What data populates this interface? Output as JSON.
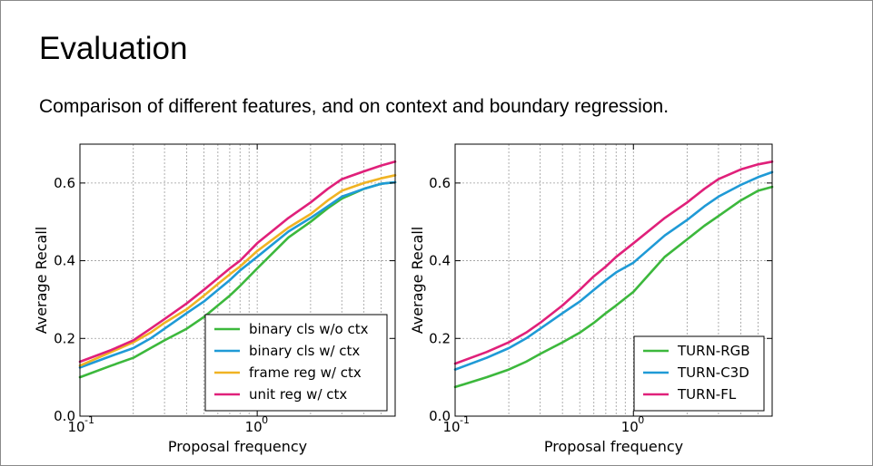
{
  "slide": {
    "title": "Evaluation",
    "subtitle": "Comparison of different features, and on context and boundary regression."
  },
  "chart_data": [
    {
      "type": "line",
      "title": "",
      "xlabel": "Proposal frequency",
      "ylabel": "Average Recall",
      "xscale": "log",
      "xlim": [
        0.1,
        6
      ],
      "ylim": [
        0.0,
        0.7
      ],
      "yticks": [
        {
          "value": 0.0,
          "label": "0.0"
        },
        {
          "value": 0.2,
          "label": "0.2"
        },
        {
          "value": 0.4,
          "label": "0.4"
        },
        {
          "value": 0.6,
          "label": "0.6"
        }
      ],
      "xticks": [
        {
          "value": 0.1,
          "base": "10",
          "exp": "-1"
        },
        {
          "value": 1,
          "base": "10",
          "exp": "0"
        }
      ],
      "grid": true,
      "legend_position": "bottom-right",
      "x": [
        0.1,
        0.15,
        0.2,
        0.25,
        0.3,
        0.4,
        0.5,
        0.6,
        0.7,
        0.8,
        1.0,
        1.5,
        2.0,
        2.5,
        3.0,
        4.0,
        5.0,
        6.0
      ],
      "series": [
        {
          "name": "binary cls w/o ctx",
          "color": "#3cb83c",
          "values": [
            0.1,
            0.13,
            0.15,
            0.175,
            0.195,
            0.225,
            0.255,
            0.285,
            0.31,
            0.335,
            0.38,
            0.46,
            0.5,
            0.535,
            0.56,
            0.585,
            0.598,
            0.602
          ]
        },
        {
          "name": "binary cls w/ ctx",
          "color": "#1f9ad6",
          "values": [
            0.125,
            0.155,
            0.175,
            0.2,
            0.225,
            0.265,
            0.295,
            0.325,
            0.35,
            0.375,
            0.41,
            0.475,
            0.51,
            0.54,
            0.565,
            0.585,
            0.598,
            0.602
          ]
        },
        {
          "name": "frame reg w/ ctx",
          "color": "#f0b323",
          "values": [
            0.13,
            0.165,
            0.19,
            0.215,
            0.24,
            0.275,
            0.31,
            0.34,
            0.365,
            0.385,
            0.425,
            0.485,
            0.52,
            0.555,
            0.58,
            0.6,
            0.612,
            0.62
          ]
        },
        {
          "name": "unit reg w/ ctx",
          "color": "#e0207a",
          "values": [
            0.14,
            0.17,
            0.195,
            0.225,
            0.25,
            0.29,
            0.325,
            0.355,
            0.38,
            0.4,
            0.445,
            0.51,
            0.55,
            0.585,
            0.61,
            0.63,
            0.645,
            0.655
          ]
        }
      ]
    },
    {
      "type": "line",
      "title": "",
      "xlabel": "Proposal frequency",
      "ylabel": "Average Recall",
      "xscale": "log",
      "xlim": [
        0.1,
        6
      ],
      "ylim": [
        0.0,
        0.7
      ],
      "yticks": [
        {
          "value": 0.0,
          "label": "0.0"
        },
        {
          "value": 0.2,
          "label": "0.2"
        },
        {
          "value": 0.4,
          "label": "0.4"
        },
        {
          "value": 0.6,
          "label": "0.6"
        }
      ],
      "xticks": [
        {
          "value": 0.1,
          "base": "10",
          "exp": "-1"
        },
        {
          "value": 1,
          "base": "10",
          "exp": "0"
        }
      ],
      "grid": true,
      "legend_position": "bottom-right",
      "x": [
        0.1,
        0.15,
        0.2,
        0.25,
        0.3,
        0.4,
        0.5,
        0.6,
        0.7,
        0.8,
        1.0,
        1.5,
        2.0,
        2.5,
        3.0,
        4.0,
        5.0,
        6.0
      ],
      "series": [
        {
          "name": "TURN-RGB",
          "color": "#3cb83c",
          "values": [
            0.075,
            0.1,
            0.12,
            0.14,
            0.16,
            0.19,
            0.215,
            0.24,
            0.265,
            0.285,
            0.32,
            0.41,
            0.455,
            0.49,
            0.515,
            0.555,
            0.58,
            0.59
          ]
        },
        {
          "name": "TURN-C3D",
          "color": "#1f9ad6",
          "values": [
            0.12,
            0.15,
            0.175,
            0.2,
            0.225,
            0.265,
            0.295,
            0.325,
            0.35,
            0.37,
            0.395,
            0.465,
            0.505,
            0.54,
            0.565,
            0.595,
            0.615,
            0.628
          ]
        },
        {
          "name": "TURN-FL",
          "color": "#e0207a",
          "values": [
            0.135,
            0.165,
            0.19,
            0.215,
            0.24,
            0.285,
            0.325,
            0.36,
            0.385,
            0.41,
            0.445,
            0.51,
            0.55,
            0.585,
            0.61,
            0.635,
            0.648,
            0.655
          ]
        }
      ]
    }
  ]
}
